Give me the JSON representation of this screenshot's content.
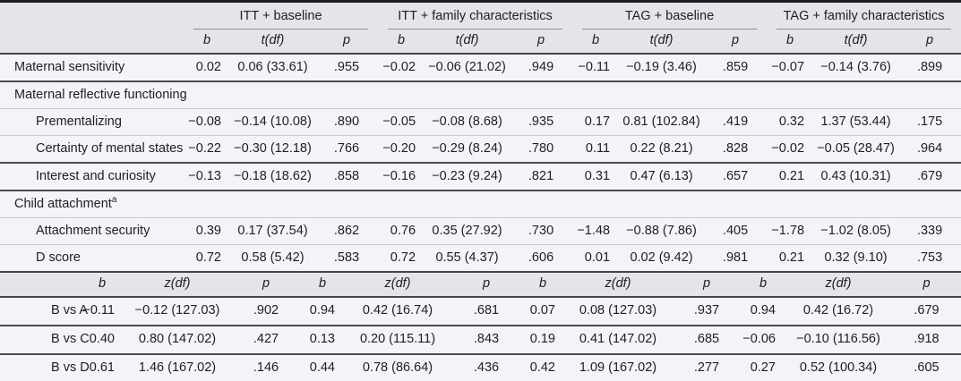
{
  "table": {
    "groups": [
      {
        "label": "ITT + baseline"
      },
      {
        "label": "ITT + family characteristics"
      },
      {
        "label": "TAG + baseline"
      },
      {
        "label": "TAG + family characteristics"
      }
    ],
    "sections": [
      {
        "stat_header": {
          "b": "b",
          "stat": "t(df)",
          "p": "p"
        },
        "rows": [
          {
            "kind": "data",
            "indent": 0,
            "label": "Maternal sensitivity",
            "sep": "dark",
            "cells": [
              [
                "0.02",
                "0.06 (33.61)",
                ".955"
              ],
              [
                "−0.02",
                "−0.06 (21.02)",
                ".949"
              ],
              [
                "−0.11",
                "−0.19 (3.46)",
                ".859"
              ],
              [
                "−0.07",
                "−0.14 (3.76)",
                ".899"
              ]
            ]
          },
          {
            "kind": "category",
            "label": "Maternal reflective functioning",
            "sep": "light"
          },
          {
            "kind": "data",
            "indent": 1,
            "label": "Prementalizing",
            "sep": "light",
            "cells": [
              [
                "−0.08",
                "−0.14 (10.08)",
                ".890"
              ],
              [
                "−0.05",
                "−0.08 (8.68)",
                ".935"
              ],
              [
                "0.17",
                "0.81 (102.84)",
                ".419"
              ],
              [
                "0.32",
                "1.37 (53.44)",
                ".175"
              ]
            ]
          },
          {
            "kind": "data",
            "indent": 1,
            "label": "Certainty of mental states",
            "sep": "dark",
            "cells": [
              [
                "−0.22",
                "−0.30 (12.18)",
                ".766"
              ],
              [
                "−0.20",
                "−0.29 (8.24)",
                ".780"
              ],
              [
                "0.11",
                "0.22 (8.21)",
                ".828"
              ],
              [
                "−0.02",
                "−0.05 (28.47)",
                ".964"
              ]
            ]
          },
          {
            "kind": "data",
            "indent": 1,
            "label": "Interest and curiosity",
            "sep": "dark",
            "cells": [
              [
                "−0.13",
                "−0.18 (18.62)",
                ".858"
              ],
              [
                "−0.16",
                "−0.23 (9.24)",
                ".821"
              ],
              [
                "0.31",
                "0.47 (6.13)",
                ".657"
              ],
              [
                "0.21",
                "0.43 (10.31)",
                ".679"
              ]
            ]
          },
          {
            "kind": "category",
            "label": "Child attachment",
            "sup": "a",
            "sep": "light"
          },
          {
            "kind": "data",
            "indent": 1,
            "label": "Attachment security",
            "sep": "light",
            "cells": [
              [
                "0.39",
                "0.17 (37.54)",
                ".862"
              ],
              [
                "0.76",
                "0.35 (27.92)",
                ".730"
              ],
              [
                "−1.48",
                "−0.88 (7.86)",
                ".405"
              ],
              [
                "−1.78",
                "−1.02 (8.05)",
                ".339"
              ]
            ]
          },
          {
            "kind": "data",
            "indent": 1,
            "label": "D score",
            "sep": "none",
            "cells": [
              [
                "0.72",
                "0.58 (5.42)",
                ".583"
              ],
              [
                "0.72",
                "0.55 (4.37)",
                ".606"
              ],
              [
                "0.01",
                "0.02 (9.42)",
                ".981"
              ],
              [
                "0.21",
                "0.32 (9.10)",
                ".753"
              ]
            ]
          }
        ]
      },
      {
        "stat_header": {
          "b": "b",
          "stat": "z(df)",
          "p": "p"
        },
        "rows": [
          {
            "kind": "data",
            "indent": 0,
            "label": "B vs A",
            "sep": "dark",
            "cells": [
              [
                "−0.11",
                "−0.12 (127.03)",
                ".902"
              ],
              [
                "0.94",
                "0.42 (16.74)",
                ".681"
              ],
              [
                "0.07",
                "0.08 (127.03)",
                ".937"
              ],
              [
                "0.94",
                "0.42 (16.72)",
                ".679"
              ]
            ]
          },
          {
            "kind": "data",
            "indent": 0,
            "label": "B vs C",
            "sep": "dark",
            "cells": [
              [
                "0.40",
                "0.80 (147.02)",
                ".427"
              ],
              [
                "0.13",
                "0.20 (115.11)",
                ".843"
              ],
              [
                "0.19",
                "0.41 (147.02)",
                ".685"
              ],
              [
                "−0.06",
                "−0.10 (116.56)",
                ".918"
              ]
            ]
          },
          {
            "kind": "data",
            "indent": 0,
            "label": "B vs D",
            "sep": "none",
            "cells": [
              [
                "0.61",
                "1.46 (167.02)",
                ".146"
              ],
              [
                "0.44",
                "0.78 (86.64)",
                ".436"
              ],
              [
                "0.42",
                "1.09 (167.02)",
                ".277"
              ],
              [
                "0.27",
                "0.52 (100.34)",
                ".605"
              ]
            ]
          }
        ]
      }
    ]
  }
}
